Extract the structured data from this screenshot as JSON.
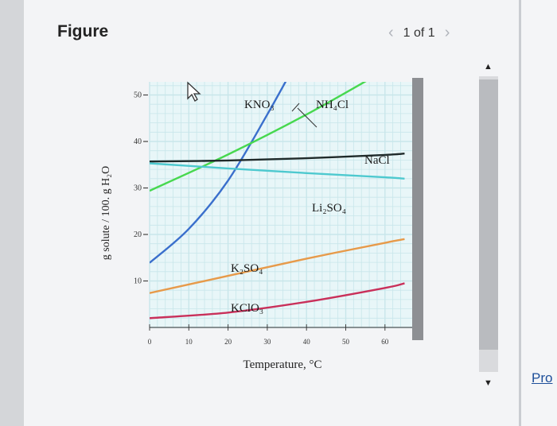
{
  "header": {
    "title": "Figure",
    "pager_text": "1 of 1",
    "prev_icon": "chevron-left-icon",
    "next_icon": "chevron-right-icon"
  },
  "side_link": "Pro",
  "colors": {
    "KNO3": "#3a6fcc",
    "NH4Cl": "#47d84f",
    "NaCl": "#1f2a2a",
    "Li2SO4": "#4ec9cf",
    "K2SO4": "#e79a4a",
    "KClO3": "#c9305a",
    "grid": "#c8e6ea",
    "plot_bg": "#e8f6f8"
  },
  "chart_data": {
    "type": "line",
    "xlabel": "Temperature, °C",
    "ylabel": "g solute / 100. g H₂O",
    "xlim": [
      0,
      65
    ],
    "ylim": [
      0,
      56
    ],
    "x_ticks": [
      "0",
      "10",
      "20",
      "30",
      "40",
      "50",
      "60"
    ],
    "y_ticks": [
      "10",
      "20",
      "30",
      "40",
      "50"
    ],
    "grid": true,
    "series": [
      {
        "name": "KNO₃",
        "points": [
          [
            0,
            13.9
          ],
          [
            10,
            21.2
          ],
          [
            20,
            31.6
          ],
          [
            30,
            45.8
          ],
          [
            38,
            58
          ]
        ]
      },
      {
        "name": "NH₄Cl",
        "points": [
          [
            0,
            29.4
          ],
          [
            20,
            37.2
          ],
          [
            40,
            45.8
          ],
          [
            60,
            55.3
          ],
          [
            66,
            58
          ]
        ]
      },
      {
        "name": "NaCl",
        "points": [
          [
            0,
            35.7
          ],
          [
            20,
            35.9
          ],
          [
            40,
            36.4
          ],
          [
            60,
            37.1
          ],
          [
            65,
            37.4
          ]
        ]
      },
      {
        "name": "Li₂SO₄",
        "points": [
          [
            0,
            35.3
          ],
          [
            20,
            34.2
          ],
          [
            40,
            33.2
          ],
          [
            60,
            32.3
          ],
          [
            65,
            32.0
          ]
        ]
      },
      {
        "name": "K₂SO₄",
        "points": [
          [
            0,
            7.4
          ],
          [
            20,
            11.1
          ],
          [
            40,
            14.8
          ],
          [
            60,
            18.2
          ],
          [
            65,
            19.0
          ]
        ]
      },
      {
        "name": "KClO₃",
        "points": [
          [
            0,
            2.0
          ],
          [
            20,
            3.2
          ],
          [
            40,
            5.5
          ],
          [
            60,
            8.5
          ],
          [
            65,
            9.5
          ]
        ]
      }
    ],
    "annotations": [
      "KNO₃",
      "NH₄Cl",
      "NaCl",
      "Li₂SO₄",
      "K₂SO₄",
      "KClO₃"
    ]
  }
}
